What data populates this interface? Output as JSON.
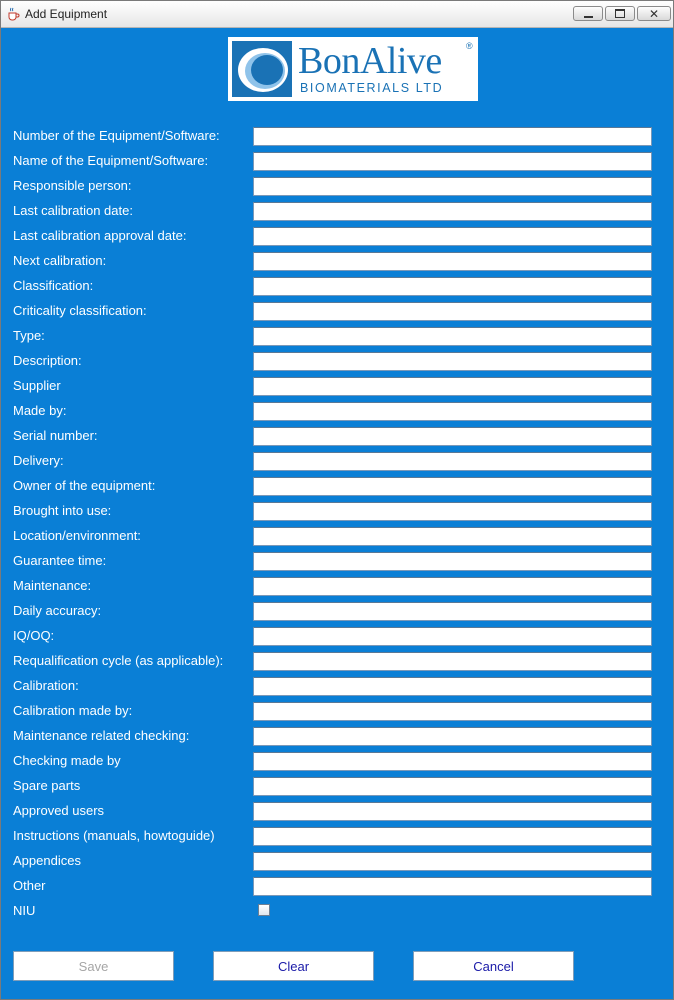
{
  "window": {
    "title": "Add Equipment",
    "app_icon": "java-cup-icon"
  },
  "logo": {
    "name": "BonAlive",
    "registered": "®",
    "subtitle": "BIOMATERIALS LTD"
  },
  "fields": [
    {
      "label": "Number of the Equipment/Software:",
      "value": ""
    },
    {
      "label": "Name of the Equipment/Software:",
      "value": ""
    },
    {
      "label": "Responsible person:",
      "value": ""
    },
    {
      "label": "Last calibration date:",
      "value": ""
    },
    {
      "label": "Last calibration approval date:",
      "value": ""
    },
    {
      "label": "Next calibration:",
      "value": ""
    },
    {
      "label": "Classification:",
      "value": ""
    },
    {
      "label": "Criticality classification:",
      "value": ""
    },
    {
      "label": "Type:",
      "value": ""
    },
    {
      "label": "Description:",
      "value": ""
    },
    {
      "label": "Supplier",
      "value": ""
    },
    {
      "label": "Made by:",
      "value": ""
    },
    {
      "label": "Serial number:",
      "value": ""
    },
    {
      "label": "Delivery:",
      "value": ""
    },
    {
      "label": "Owner of the equipment:",
      "value": ""
    },
    {
      "label": "Brought into use:",
      "value": ""
    },
    {
      "label": "Location/environment:",
      "value": ""
    },
    {
      "label": "Guarantee time:",
      "value": ""
    },
    {
      "label": "Maintenance:",
      "value": ""
    },
    {
      "label": "Daily accuracy:",
      "value": ""
    },
    {
      "label": "IQ/OQ:",
      "value": ""
    },
    {
      "label": "Requalification cycle (as applicable):",
      "value": ""
    },
    {
      "label": "Calibration:",
      "value": ""
    },
    {
      "label": "Calibration made by:",
      "value": ""
    },
    {
      "label": "Maintenance related checking:",
      "value": ""
    },
    {
      "label": "Checking made by",
      "value": ""
    },
    {
      "label": "Spare parts",
      "value": ""
    },
    {
      "label": "Approved users",
      "value": ""
    },
    {
      "label": "Instructions (manuals, howtoguide)",
      "value": ""
    },
    {
      "label": "Appendices",
      "value": ""
    },
    {
      "label": "Other",
      "value": ""
    }
  ],
  "niu": {
    "label": "NIU",
    "checked": false
  },
  "buttons": {
    "save": "Save",
    "clear": "Clear",
    "cancel": "Cancel"
  },
  "colors": {
    "background": "#0a7fd6",
    "button_text": "#1a1aa8",
    "disabled_text": "#a6a6a6",
    "brand": "#1a72b5"
  }
}
